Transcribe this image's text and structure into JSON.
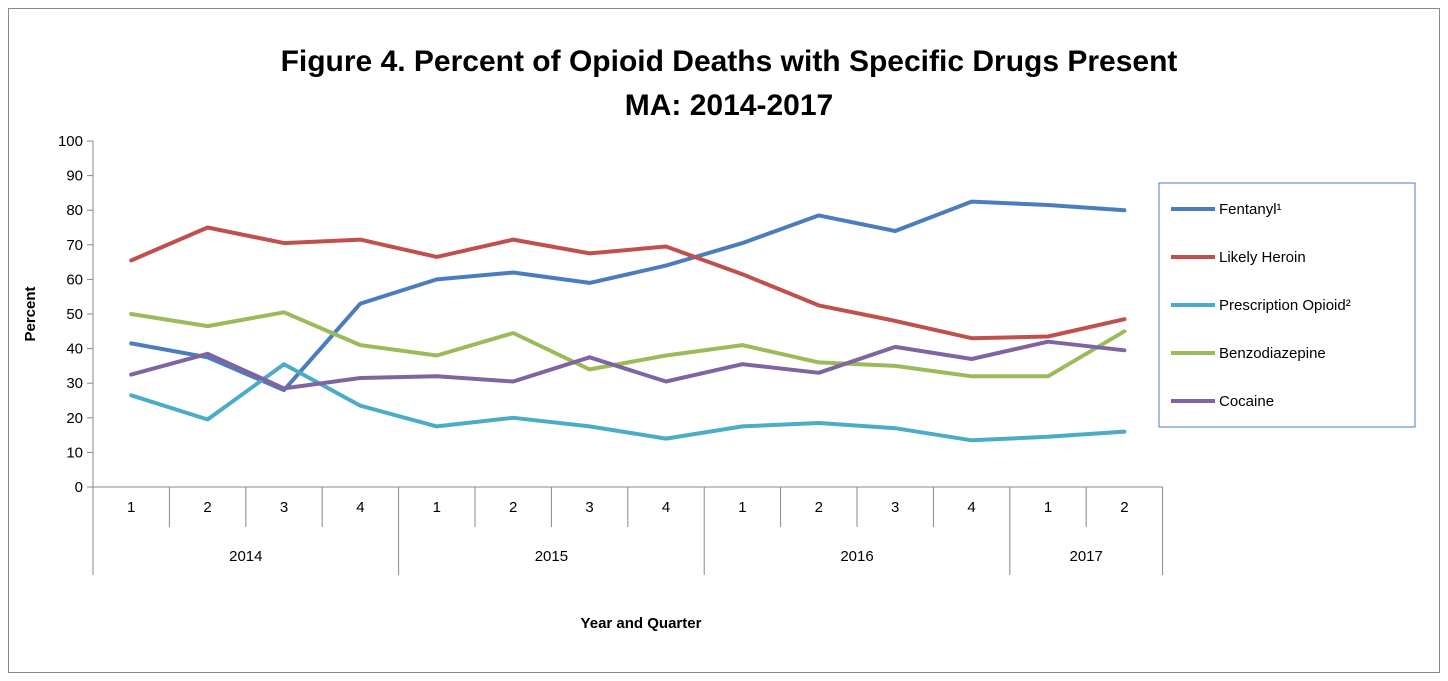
{
  "chart_data": {
    "type": "line",
    "title": "Figure 4. Percent of Opioid Deaths with Specific Drugs Present",
    "subtitle": "MA: 2014-2017",
    "xlabel": "Year and Quarter",
    "ylabel": "Percent",
    "ylim": [
      0,
      100
    ],
    "yticks": [
      "0",
      "10",
      "20",
      "30",
      "40",
      "50",
      "60",
      "70",
      "80",
      "90",
      "100"
    ],
    "categories": [
      "1",
      "2",
      "3",
      "4",
      "1",
      "2",
      "3",
      "4",
      "1",
      "2",
      "3",
      "4",
      "1",
      "2"
    ],
    "years": [
      {
        "label": "2014",
        "count": 4
      },
      {
        "label": "2015",
        "count": 4
      },
      {
        "label": "2016",
        "count": 4
      },
      {
        "label": "2017",
        "count": 2
      }
    ],
    "grid": false,
    "legend_position": "right",
    "series": [
      {
        "name": "Fentanyl¹",
        "color": "#4a7dbf",
        "values": [
          41.5,
          37.5,
          28,
          53,
          60,
          62,
          59,
          64,
          70.5,
          78.5,
          74,
          82.5,
          81.5,
          80
        ]
      },
      {
        "name": "Likely Heroin",
        "color": "#c0504d",
        "values": [
          65.5,
          75,
          70.5,
          71.5,
          66.5,
          71.5,
          67.5,
          69.5,
          61.5,
          52.5,
          48,
          43,
          43.5,
          48.5
        ]
      },
      {
        "name": "Prescription Opioid²",
        "color": "#4bacc6",
        "values": [
          26.5,
          19.5,
          35.5,
          23.5,
          17.5,
          20,
          17.5,
          14,
          17.5,
          18.5,
          17,
          13.5,
          14.5,
          16
        ]
      },
      {
        "name": "Benzodiazepine",
        "color": "#9bbb59",
        "values": [
          50,
          46.5,
          50.5,
          41,
          38,
          44.5,
          34,
          38,
          41,
          36,
          35,
          32,
          32,
          45
        ]
      },
      {
        "name": "Cocaine",
        "color": "#8064a2",
        "values": [
          32.5,
          38.5,
          28.5,
          31.5,
          32,
          30.5,
          37.5,
          30.5,
          35.5,
          33,
          40.5,
          37,
          42,
          39.5
        ]
      }
    ]
  }
}
